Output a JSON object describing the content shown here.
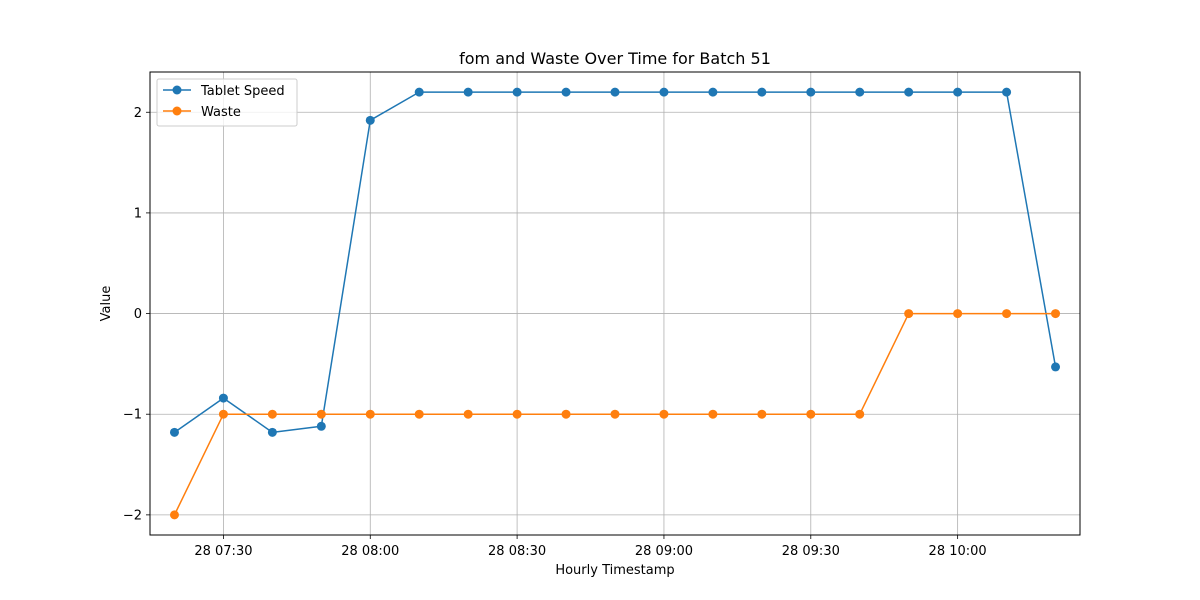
{
  "chart_data": {
    "type": "line",
    "title": "fom and Waste Over Time for Batch 51",
    "xlabel": "Hourly Timestamp",
    "ylabel": "Value",
    "grid": true,
    "legend_position": "top-left",
    "x": [
      "07:20",
      "07:30",
      "07:40",
      "07:50",
      "08:00",
      "08:10",
      "08:20",
      "08:30",
      "08:40",
      "08:50",
      "09:00",
      "09:10",
      "09:20",
      "09:30",
      "09:40",
      "09:50",
      "10:00",
      "10:10",
      "10:20"
    ],
    "x_ticks": [
      "07:30",
      "08:00",
      "08:30",
      "09:00",
      "09:30",
      "10:00"
    ],
    "x_tick_labels": [
      "28 07:30",
      "28 08:00",
      "28 08:30",
      "28 09:00",
      "28 09:30",
      "28 10:00"
    ],
    "xlim": [
      "07:15",
      "10:25"
    ],
    "y_ticks": [
      -2,
      -1,
      0,
      1,
      2
    ],
    "y_tick_labels": [
      "−2",
      "−1",
      "0",
      "1",
      "2"
    ],
    "ylim": [
      -2.2,
      2.4
    ],
    "series": [
      {
        "name": "Tablet Speed",
        "color": "#1f77b4",
        "values": [
          -1.18,
          -0.84,
          -1.18,
          -1.12,
          1.92,
          2.2,
          2.2,
          2.2,
          2.2,
          2.2,
          2.2,
          2.2,
          2.2,
          2.2,
          2.2,
          2.2,
          2.2,
          2.2,
          -0.53
        ]
      },
      {
        "name": "Waste",
        "color": "#ff7f0e",
        "values": [
          -2,
          -1,
          -1,
          -1,
          -1,
          -1,
          -1,
          -1,
          -1,
          -1,
          -1,
          -1,
          -1,
          -1,
          -1,
          0,
          0,
          0,
          0
        ]
      }
    ]
  }
}
